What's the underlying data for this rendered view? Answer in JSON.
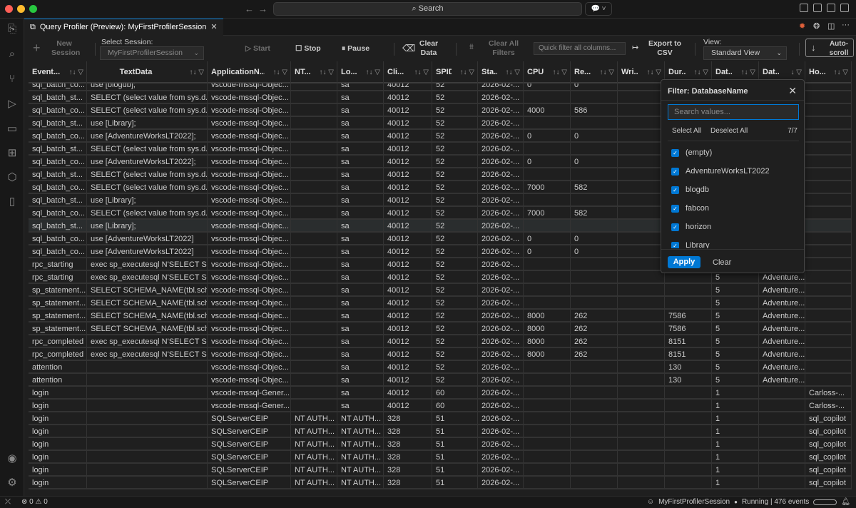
{
  "window": {
    "search_label": "Search",
    "traffic_colors": [
      "#ff5f57",
      "#febc2e",
      "#28c840"
    ]
  },
  "tab": {
    "title": "Query Profiler (Preview): MyFirstProfilerSession"
  },
  "toolbar": {
    "new_session": "New Session",
    "select_session_label": "Select Session:",
    "select_session_value": "MyFirstProfilerSession",
    "start": "Start",
    "stop": "Stop",
    "pause": "Pause",
    "clear_data": "Clear Data",
    "clear_all_filters": "Clear All Filters",
    "quick_filter_placeholder": "Quick filter all columns...",
    "export_csv": "Export to CSV",
    "view_label": "View:",
    "view_value": "Standard View",
    "autoscroll": "Auto-scroll"
  },
  "grid": {
    "columns": [
      "Event...",
      "TextData",
      "ApplicationN...",
      "NT...",
      "Lo...",
      "Cli...",
      "SPID",
      "Sta...",
      "CPU",
      "Re...",
      "Wri...",
      "Dur...",
      "Dat...",
      "Dat...",
      "Ho..."
    ],
    "sort_icons": [
      "↑↓",
      "↑↓",
      "↑↓",
      "↑↓",
      "↑↓",
      "↑↓",
      "↑↓",
      "↑↓",
      "↑↓",
      "↑↓",
      "↑↓",
      "↑↓",
      "↑↓",
      "↓",
      "↑↓"
    ],
    "selected_row": 11,
    "rows": [
      [
        "sql_batch_co...",
        "use [blogdb];",
        "vscode-mssql-Objec...",
        "",
        "sa",
        "40012",
        "52",
        "2026-02-...",
        "0",
        "0",
        "",
        "",
        "",
        "",
        ""
      ],
      [
        "sql_batch_st...",
        "SELECT (select value from sys.d...",
        "vscode-mssql-Objec...",
        "",
        "sa",
        "40012",
        "52",
        "2026-02-...",
        "",
        "",
        "",
        "",
        "",
        "",
        ""
      ],
      [
        "sql_batch_co...",
        "SELECT (select value from sys.d...",
        "vscode-mssql-Objec...",
        "",
        "sa",
        "40012",
        "52",
        "2026-02-...",
        "4000",
        "586",
        "",
        "",
        "",
        "",
        ""
      ],
      [
        "sql_batch_st...",
        "use [Library];",
        "vscode-mssql-Objec...",
        "",
        "sa",
        "40012",
        "52",
        "2026-02-...",
        "",
        "",
        "",
        "",
        "",
        "",
        ""
      ],
      [
        "sql_batch_co...",
        "use [AdventureWorksLT2022];",
        "vscode-mssql-Objec...",
        "",
        "sa",
        "40012",
        "52",
        "2026-02-...",
        "0",
        "0",
        "",
        "",
        "",
        "",
        ""
      ],
      [
        "sql_batch_st...",
        "SELECT (select value from sys.d...",
        "vscode-mssql-Objec...",
        "",
        "sa",
        "40012",
        "52",
        "2026-02-...",
        "",
        "",
        "",
        "",
        "",
        "",
        ""
      ],
      [
        "sql_batch_co...",
        "use [AdventureWorksLT2022];",
        "vscode-mssql-Objec...",
        "",
        "sa",
        "40012",
        "52",
        "2026-02-...",
        "0",
        "0",
        "",
        "",
        "",
        "",
        ""
      ],
      [
        "sql_batch_st...",
        "SELECT (select value from sys.d...",
        "vscode-mssql-Objec...",
        "",
        "sa",
        "40012",
        "52",
        "2026-02-...",
        "",
        "",
        "",
        "",
        "",
        "",
        ""
      ],
      [
        "sql_batch_co...",
        "SELECT (select value from sys.d...",
        "vscode-mssql-Objec...",
        "",
        "sa",
        "40012",
        "52",
        "2026-02-...",
        "7000",
        "582",
        "",
        "",
        "",
        "",
        ""
      ],
      [
        "sql_batch_st...",
        "use [Library];",
        "vscode-mssql-Objec...",
        "",
        "sa",
        "40012",
        "52",
        "2026-02-...",
        "",
        "",
        "",
        "",
        "",
        "",
        ""
      ],
      [
        "sql_batch_co...",
        "SELECT (select value from sys.d...",
        "vscode-mssql-Objec...",
        "",
        "sa",
        "40012",
        "52",
        "2026-02-...",
        "7000",
        "582",
        "",
        "",
        "",
        "",
        ""
      ],
      [
        "sql_batch_st...",
        "use [Library];",
        "vscode-mssql-Objec...",
        "",
        "sa",
        "40012",
        "52",
        "2026-02-...",
        "",
        "",
        "",
        "",
        "",
        "",
        ""
      ],
      [
        "sql_batch_co...",
        "use [AdventureWorksLT2022]",
        "vscode-mssql-Objec...",
        "",
        "sa",
        "40012",
        "52",
        "2026-02-...",
        "0",
        "0",
        "",
        "",
        "",
        "",
        ""
      ],
      [
        "sql_batch_co...",
        "use [AdventureWorksLT2022]",
        "vscode-mssql-Objec...",
        "",
        "sa",
        "40012",
        "52",
        "2026-02-...",
        "0",
        "0",
        "",
        "",
        "",
        "",
        ""
      ],
      [
        "rpc_starting",
        "exec sp_executesql N'SELECT S...",
        "vscode-mssql-Objec...",
        "",
        "sa",
        "40012",
        "52",
        "2026-02-...",
        "",
        "",
        "",
        "",
        "",
        "",
        ""
      ],
      [
        "rpc_starting",
        "exec sp_executesql N'SELECT S...",
        "vscode-mssql-Objec...",
        "",
        "sa",
        "40012",
        "52",
        "2026-02-...",
        "",
        "",
        "",
        "",
        "5",
        "Adventure...",
        ""
      ],
      [
        "sp_statement...",
        "SELECT SCHEMA_NAME(tbl.sch...",
        "vscode-mssql-Objec...",
        "",
        "sa",
        "40012",
        "52",
        "2026-02-...",
        "",
        "",
        "",
        "",
        "5",
        "Adventure...",
        ""
      ],
      [
        "sp_statement...",
        "SELECT SCHEMA_NAME(tbl.sch...",
        "vscode-mssql-Objec...",
        "",
        "sa",
        "40012",
        "52",
        "2026-02-...",
        "",
        "",
        "",
        "",
        "5",
        "Adventure...",
        ""
      ],
      [
        "sp_statement...",
        "SELECT SCHEMA_NAME(tbl.sch...",
        "vscode-mssql-Objec...",
        "",
        "sa",
        "40012",
        "52",
        "2026-02-...",
        "8000",
        "262",
        "",
        "7586",
        "5",
        "Adventure...",
        ""
      ],
      [
        "sp_statement...",
        "SELECT SCHEMA_NAME(tbl.sch...",
        "vscode-mssql-Objec...",
        "",
        "sa",
        "40012",
        "52",
        "2026-02-...",
        "8000",
        "262",
        "",
        "7586",
        "5",
        "Adventure...",
        ""
      ],
      [
        "rpc_completed",
        "exec sp_executesql N'SELECT S...",
        "vscode-mssql-Objec...",
        "",
        "sa",
        "40012",
        "52",
        "2026-02-...",
        "8000",
        "262",
        "",
        "8151",
        "5",
        "Adventure...",
        ""
      ],
      [
        "rpc_completed",
        "exec sp_executesql N'SELECT S...",
        "vscode-mssql-Objec...",
        "",
        "sa",
        "40012",
        "52",
        "2026-02-...",
        "8000",
        "262",
        "",
        "8151",
        "5",
        "Adventure...",
        ""
      ],
      [
        "attention",
        "",
        "vscode-mssql-Objec...",
        "",
        "sa",
        "40012",
        "52",
        "2026-02-...",
        "",
        "",
        "",
        "130",
        "5",
        "Adventure...",
        ""
      ],
      [
        "attention",
        "",
        "vscode-mssql-Objec...",
        "",
        "sa",
        "40012",
        "52",
        "2026-02-...",
        "",
        "",
        "",
        "130",
        "5",
        "Adventure...",
        ""
      ],
      [
        "login",
        "",
        "vscode-mssql-Gener...",
        "",
        "sa",
        "40012",
        "60",
        "2026-02-...",
        "",
        "",
        "",
        "",
        "1",
        "",
        "Carloss-..."
      ],
      [
        "login",
        "",
        "vscode-mssql-Gener...",
        "",
        "sa",
        "40012",
        "60",
        "2026-02-...",
        "",
        "",
        "",
        "",
        "1",
        "",
        "Carloss-..."
      ],
      [
        "login",
        "",
        "SQLServerCEIP",
        "NT AUTH...",
        "NT AUTH...",
        "328",
        "51",
        "2026-02-...",
        "",
        "",
        "",
        "",
        "1",
        "",
        "sql_copilot"
      ],
      [
        "login",
        "",
        "SQLServerCEIP",
        "NT AUTH...",
        "NT AUTH...",
        "328",
        "51",
        "2026-02-...",
        "",
        "",
        "",
        "",
        "1",
        "",
        "sql_copilot"
      ],
      [
        "login",
        "",
        "SQLServerCEIP",
        "NT AUTH...",
        "NT AUTH...",
        "328",
        "51",
        "2026-02-...",
        "",
        "",
        "",
        "",
        "1",
        "",
        "sql_copilot"
      ],
      [
        "login",
        "",
        "SQLServerCEIP",
        "NT AUTH...",
        "NT AUTH...",
        "328",
        "51",
        "2026-02-...",
        "",
        "",
        "",
        "",
        "1",
        "",
        "sql_copilot"
      ],
      [
        "login",
        "",
        "SQLServerCEIP",
        "NT AUTH...",
        "NT AUTH...",
        "328",
        "51",
        "2026-02-...",
        "",
        "",
        "",
        "",
        "1",
        "",
        "sql_copilot"
      ],
      [
        "login",
        "",
        "SQLServerCEIP",
        "NT AUTH...",
        "NT AUTH...",
        "328",
        "51",
        "2026-02-...",
        "",
        "",
        "",
        "",
        "1",
        "",
        "sql_copilot"
      ]
    ]
  },
  "filter_popup": {
    "title": "Filter: DatabaseName",
    "search_placeholder": "Search values...",
    "select_all": "Select All",
    "deselect_all": "Deselect All",
    "count": "7/7",
    "options": [
      {
        "label": "(empty)",
        "checked": true
      },
      {
        "label": "AdventureWorksLT2022",
        "checked": true
      },
      {
        "label": "blogdb",
        "checked": true
      },
      {
        "label": "fabcon",
        "checked": true
      },
      {
        "label": "horizon",
        "checked": true
      },
      {
        "label": "Library",
        "checked": true
      }
    ],
    "apply": "Apply",
    "clear": "Clear"
  },
  "status": {
    "errors": "0",
    "warnings": "0",
    "session": "MyFirstProfilerSession",
    "state": "Running | 476 events"
  },
  "accent": "#0078d4"
}
